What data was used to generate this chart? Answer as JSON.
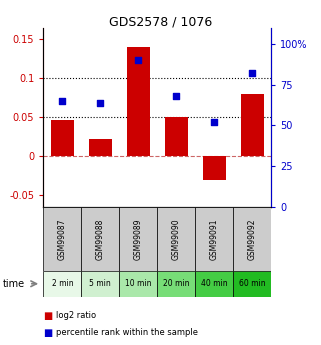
{
  "title": "GDS2578 / 1076",
  "categories": [
    "GSM99087",
    "GSM99088",
    "GSM99089",
    "GSM99090",
    "GSM99091",
    "GSM99092"
  ],
  "time_labels": [
    "2 min",
    "5 min",
    "10 min",
    "20 min",
    "40 min",
    "60 min"
  ],
  "log2_ratio": [
    0.047,
    0.022,
    0.14,
    0.05,
    -0.03,
    0.08
  ],
  "percentile_rank": [
    65,
    64,
    90,
    68,
    52,
    82
  ],
  "bar_color": "#cc0000",
  "dot_color": "#0000cc",
  "left_ylim": [
    -0.065,
    0.165
  ],
  "left_yticks": [
    -0.05,
    0.0,
    0.05,
    0.1,
    0.15
  ],
  "right_ylim": [
    0,
    110
  ],
  "right_yticks": [
    0,
    25,
    50,
    75,
    100
  ],
  "right_yticklabels": [
    "0",
    "25",
    "50",
    "75",
    "100%"
  ],
  "hlines": [
    0.0,
    0.05,
    0.1
  ],
  "hline_styles": [
    "--",
    ":",
    ":"
  ],
  "hline_colors": [
    "#cc6666",
    "#000000",
    "#000000"
  ],
  "gray_box_color": "#cccccc",
  "green_colors": [
    "#e8f8e8",
    "#d0f0d0",
    "#aae8aa",
    "#77dd77",
    "#44cc44",
    "#22bb22"
  ],
  "legend_labels": [
    "log2 ratio",
    "percentile rank within the sample"
  ],
  "legend_colors": [
    "#cc0000",
    "#0000cc"
  ],
  "time_label": "time"
}
